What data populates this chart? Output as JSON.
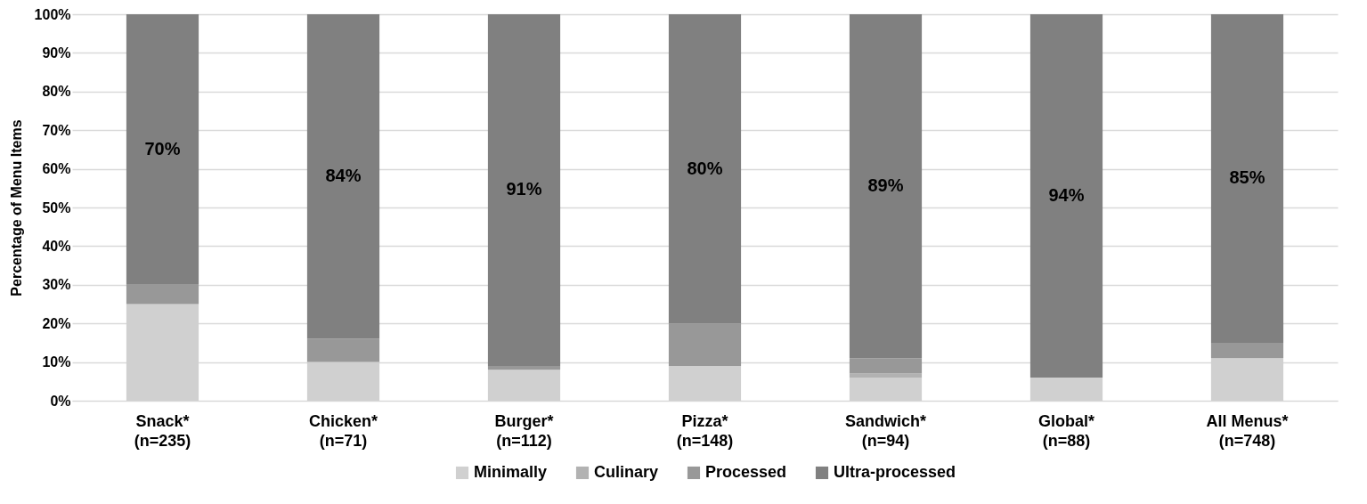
{
  "chart_data": {
    "type": "bar",
    "stacked": true,
    "ylabel": "Percentage of Menu Items",
    "categories": [
      "Snack*\n(n=235)",
      "Chicken*\n(n=71)",
      "Burger*\n(n=112)",
      "Pizza*\n(n=148)",
      "Sandwich*\n(n=94)",
      "Global*\n(n=88)",
      "All Menus*\n(n=748)"
    ],
    "series": [
      {
        "name": "Minimally",
        "color": "#d0d0d0",
        "values": [
          25,
          10,
          8,
          9,
          6,
          6,
          11
        ]
      },
      {
        "name": "Culinary",
        "color": "#b2b2b2",
        "values": [
          0,
          0,
          0,
          0,
          1,
          0,
          0
        ]
      },
      {
        "name": "Processed",
        "color": "#989898",
        "values": [
          5,
          6,
          1,
          11,
          4,
          0,
          4
        ]
      },
      {
        "name": "Ultra-processed",
        "color": "#808080",
        "values": [
          70,
          84,
          91,
          80,
          89,
          94,
          85
        ],
        "value_labels": [
          "70%",
          "84%",
          "91%",
          "80%",
          "89%",
          "94%",
          "85%"
        ]
      }
    ],
    "ylim": [
      0,
      100
    ],
    "yticks": [
      {
        "value": 0,
        "label": "0%"
      },
      {
        "value": 10,
        "label": "10%"
      },
      {
        "value": 20,
        "label": "20%"
      },
      {
        "value": 30,
        "label": "30%"
      },
      {
        "value": 40,
        "label": "40%"
      },
      {
        "value": 50,
        "label": "50%"
      },
      {
        "value": 60,
        "label": "60%"
      },
      {
        "value": 70,
        "label": "70%"
      },
      {
        "value": 80,
        "label": "80%"
      },
      {
        "value": 90,
        "label": "90%"
      },
      {
        "value": 100,
        "label": "100%"
      }
    ],
    "grid": "y",
    "legend": "bottom"
  }
}
